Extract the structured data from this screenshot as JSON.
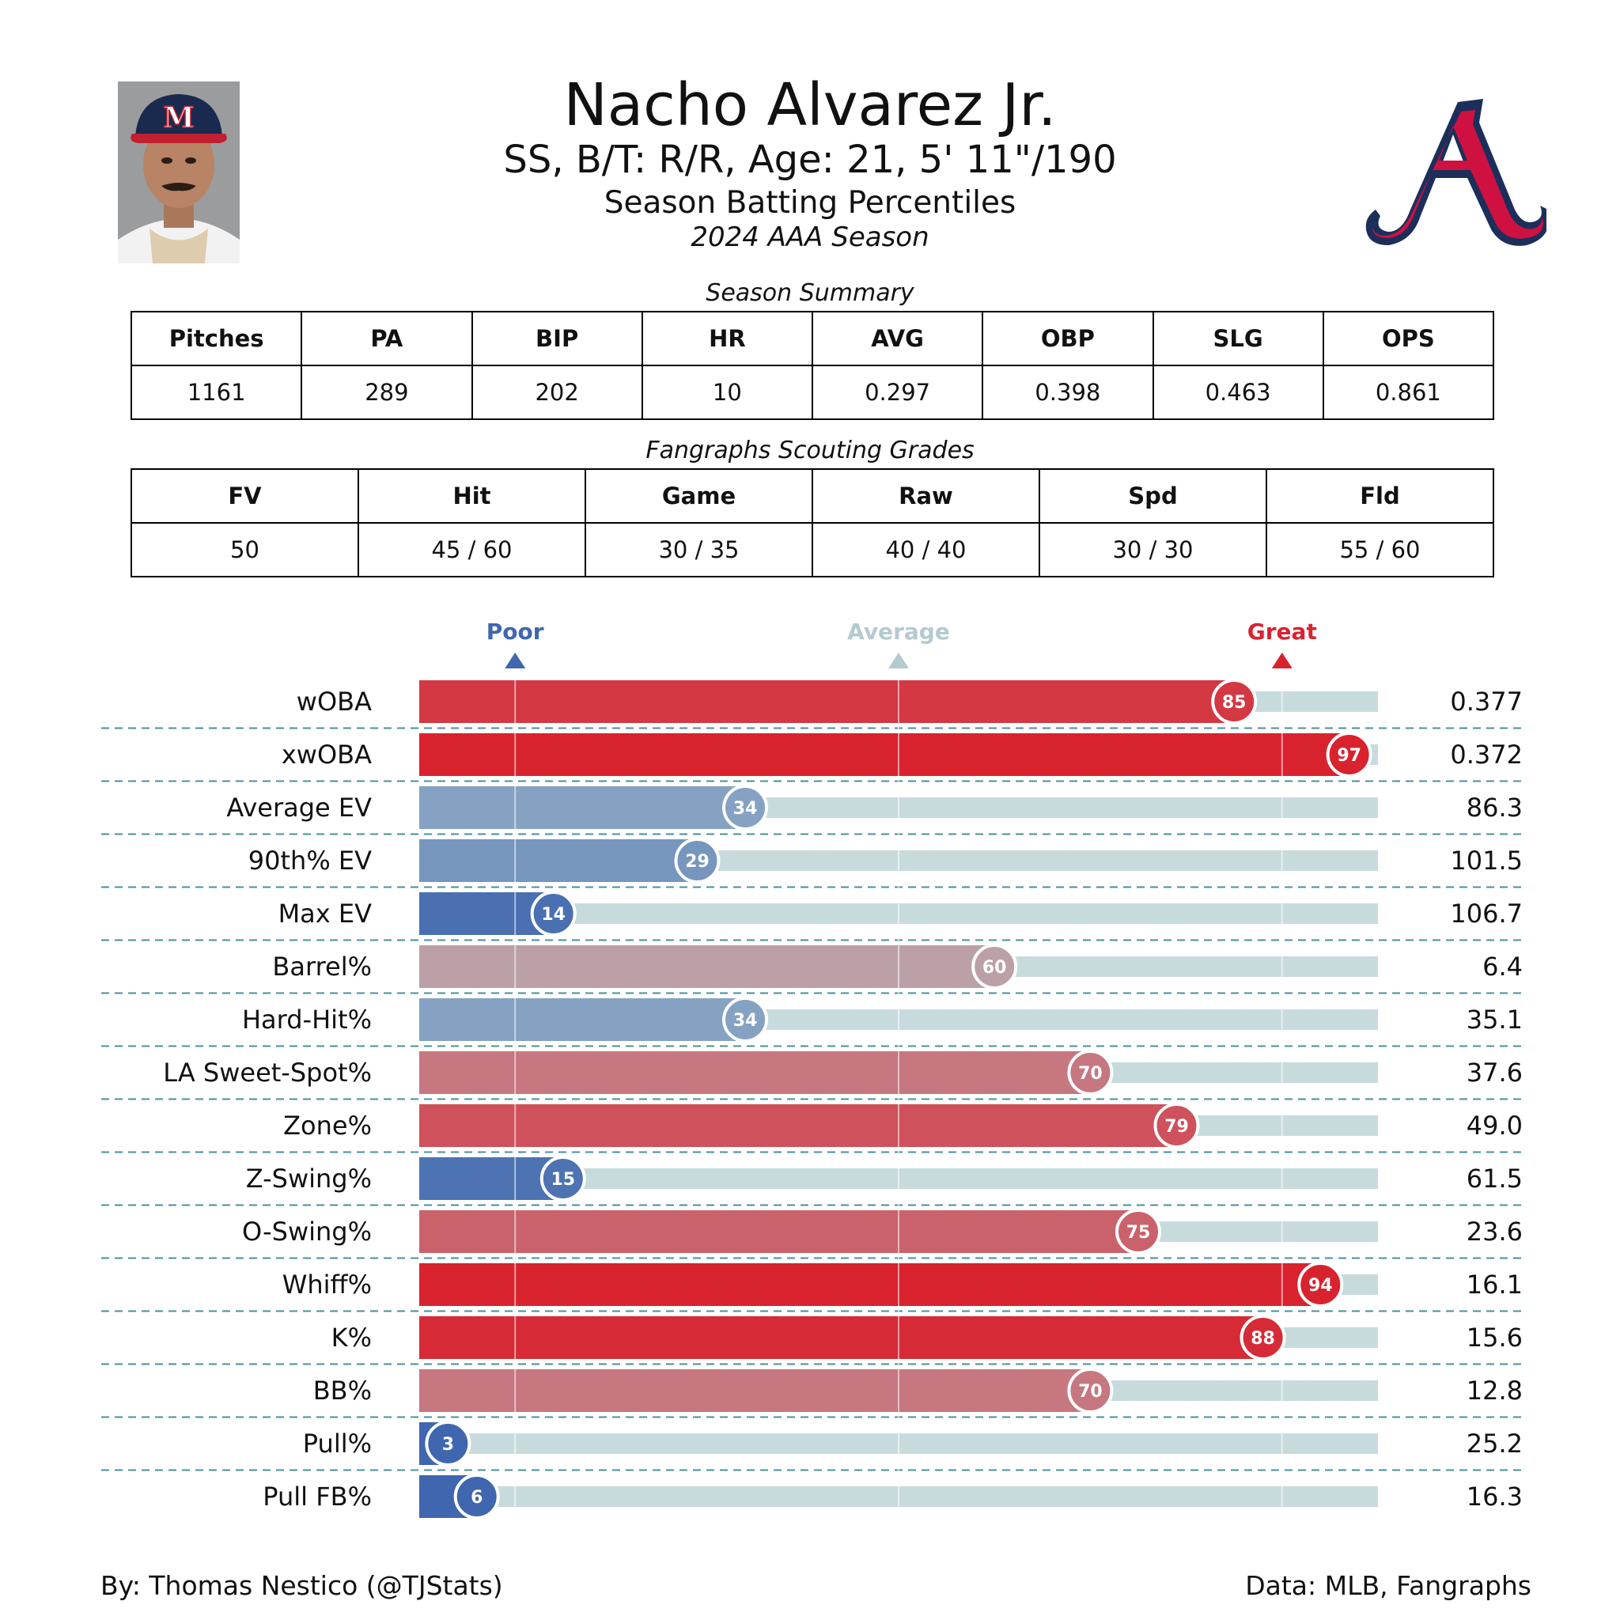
{
  "header": {
    "name": "Nacho Alvarez Jr.",
    "info": "SS, B/T: R/R, Age: 21, 5' 11\"/190",
    "subtitle": "Season Batting Percentiles",
    "season": "2024 AAA Season"
  },
  "headshot": {
    "cap_letter": "M"
  },
  "season_summary": {
    "caption": "Season Summary",
    "headers": [
      "Pitches",
      "PA",
      "BIP",
      "HR",
      "AVG",
      "OBP",
      "SLG",
      "OPS"
    ],
    "values": [
      "1161",
      "289",
      "202",
      "10",
      "0.297",
      "0.398",
      "0.463",
      "0.861"
    ]
  },
  "scouting_grades": {
    "caption": "Fangraphs Scouting Grades",
    "headers": [
      "FV",
      "Hit",
      "Game",
      "Raw",
      "Spd",
      "Fld"
    ],
    "values": [
      "50",
      "45 / 60",
      "30 / 35",
      "40 / 40",
      "30 / 30",
      "55 / 60"
    ]
  },
  "colors": {
    "poor": "#3f66ae",
    "average": "#b3cad0",
    "great": "#d8232f",
    "track": "#c7dbdd",
    "divider": "#4a8f99"
  },
  "chart_data": {
    "type": "bar",
    "orientation": "horizontal",
    "xlim": [
      0,
      100
    ],
    "reference_markers": [
      {
        "label": "Poor",
        "value": 10
      },
      {
        "label": "Average",
        "value": 50
      },
      {
        "label": "Great",
        "value": 90
      }
    ],
    "categories": [
      "wOBA",
      "xwOBA",
      "Average EV",
      "90th% EV",
      "Max EV",
      "Barrel%",
      "Hard-Hit%",
      "LA Sweet-Spot%",
      "Zone%",
      "Z-Swing%",
      "O-Swing%",
      "Whiff%",
      "K%",
      "BB%",
      "Pull%",
      "Pull FB%"
    ],
    "percentiles": [
      85,
      97,
      34,
      29,
      14,
      60,
      34,
      70,
      79,
      15,
      75,
      94,
      88,
      70,
      3,
      6
    ],
    "stat_values": [
      "0.377",
      "0.372",
      "86.3",
      "101.5",
      "106.7",
      "6.4",
      "35.1",
      "37.6",
      "49.0",
      "61.5",
      "23.6",
      "16.1",
      "15.6",
      "12.8",
      "25.2",
      "16.3"
    ]
  },
  "footer": {
    "credit": "By: Thomas Nestico (@TJStats)",
    "source": "Data: MLB, Fangraphs"
  }
}
